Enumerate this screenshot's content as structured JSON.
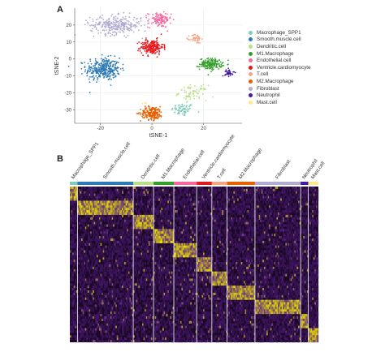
{
  "panel_a_label": "A",
  "panel_b_label": "B",
  "colors": {
    "Macrophage_SPP1": "#7fcdbb",
    "Smooth.muscle.cell": "#2c7bb6",
    "Dendritic.cell": "#b8e186",
    "M1.Macrophage": "#33a02c",
    "Endothelial.cell": "#f768a1",
    "Ventricle.cardiomyocyte": "#e31a1c",
    "T.cell": "#f4a582",
    "M2.Macrophage": "#e66101",
    "Fibroblast": "#b2abd2",
    "Neutrophil": "#3f1d9e",
    "Mast.cell": "#ffe88a"
  },
  "chart_data": [
    {
      "type": "scatter",
      "title": "",
      "xlabel": "tSNE-1",
      "ylabel": "tSNE-2",
      "xlim": [
        -30,
        35
      ],
      "ylim": [
        -38,
        30
      ],
      "xticks": [
        -20,
        0,
        20
      ],
      "yticks": [
        20,
        10,
        0,
        -10,
        -20,
        -30
      ],
      "legend_position": "right",
      "series": [
        {
          "name": "Macrophage_SPP1",
          "center": [
            12,
            -30
          ],
          "spread": [
            4,
            3.5
          ],
          "n": 70
        },
        {
          "name": "Smooth.muscle.cell",
          "center": [
            -19,
            -6
          ],
          "spread": [
            6,
            6
          ],
          "n": 330
        },
        {
          "name": "Dendritic.cell",
          "center": [
            16,
            -20
          ],
          "spread": [
            5,
            4
          ],
          "n": 70
        },
        {
          "name": "M1.Macrophage",
          "center": [
            23,
            -3
          ],
          "spread": [
            4,
            3
          ],
          "n": 170
        },
        {
          "name": "Endothelial.cell",
          "center": [
            3,
            23
          ],
          "spread": [
            4,
            4
          ],
          "n": 120
        },
        {
          "name": "Ventricle.cardiomyocyte",
          "center": [
            0,
            7
          ],
          "spread": [
            4,
            4
          ],
          "n": 200
        },
        {
          "name": "T.cell",
          "center": [
            17,
            12
          ],
          "spread": [
            2,
            2.5
          ],
          "n": 50
        },
        {
          "name": "M2.Macrophage",
          "center": [
            0,
            -32
          ],
          "spread": [
            4,
            3.5
          ],
          "n": 190
        },
        {
          "name": "Fibroblast",
          "center": [
            -14,
            20
          ],
          "spread": [
            9,
            5
          ],
          "n": 300
        },
        {
          "name": "Neutrophil",
          "center": [
            30,
            -8
          ],
          "spread": [
            1.5,
            2
          ],
          "n": 35
        },
        {
          "name": "Mast.cell",
          "center": [
            -3,
            -26
          ],
          "spread": [
            1,
            1
          ],
          "n": 4
        }
      ]
    },
    {
      "type": "heatmap",
      "title": "",
      "columns": [
        {
          "name": "Macrophage_SPP1",
          "width": 3
        },
        {
          "name": "Smooth.muscle.cell",
          "width": 22
        },
        {
          "name": "Dendritic.cell",
          "width": 8
        },
        {
          "name": "M1.Macrophage",
          "width": 8
        },
        {
          "name": "Endothelial.cell",
          "width": 9
        },
        {
          "name": "Ventricle.cardiomyocyte",
          "width": 6
        },
        {
          "name": "T.cell",
          "width": 6
        },
        {
          "name": "M2.Macrophage",
          "width": 11
        },
        {
          "name": "Fibroblast",
          "width": 18
        },
        {
          "name": "Neutrophil",
          "width": 3
        },
        {
          "name": "Mast.cell",
          "width": 4
        }
      ],
      "row_groups": 11,
      "rows_per_group": 6,
      "color_scale": [
        "#1c0826",
        "#e7e000"
      ],
      "row_labels": []
    }
  ]
}
